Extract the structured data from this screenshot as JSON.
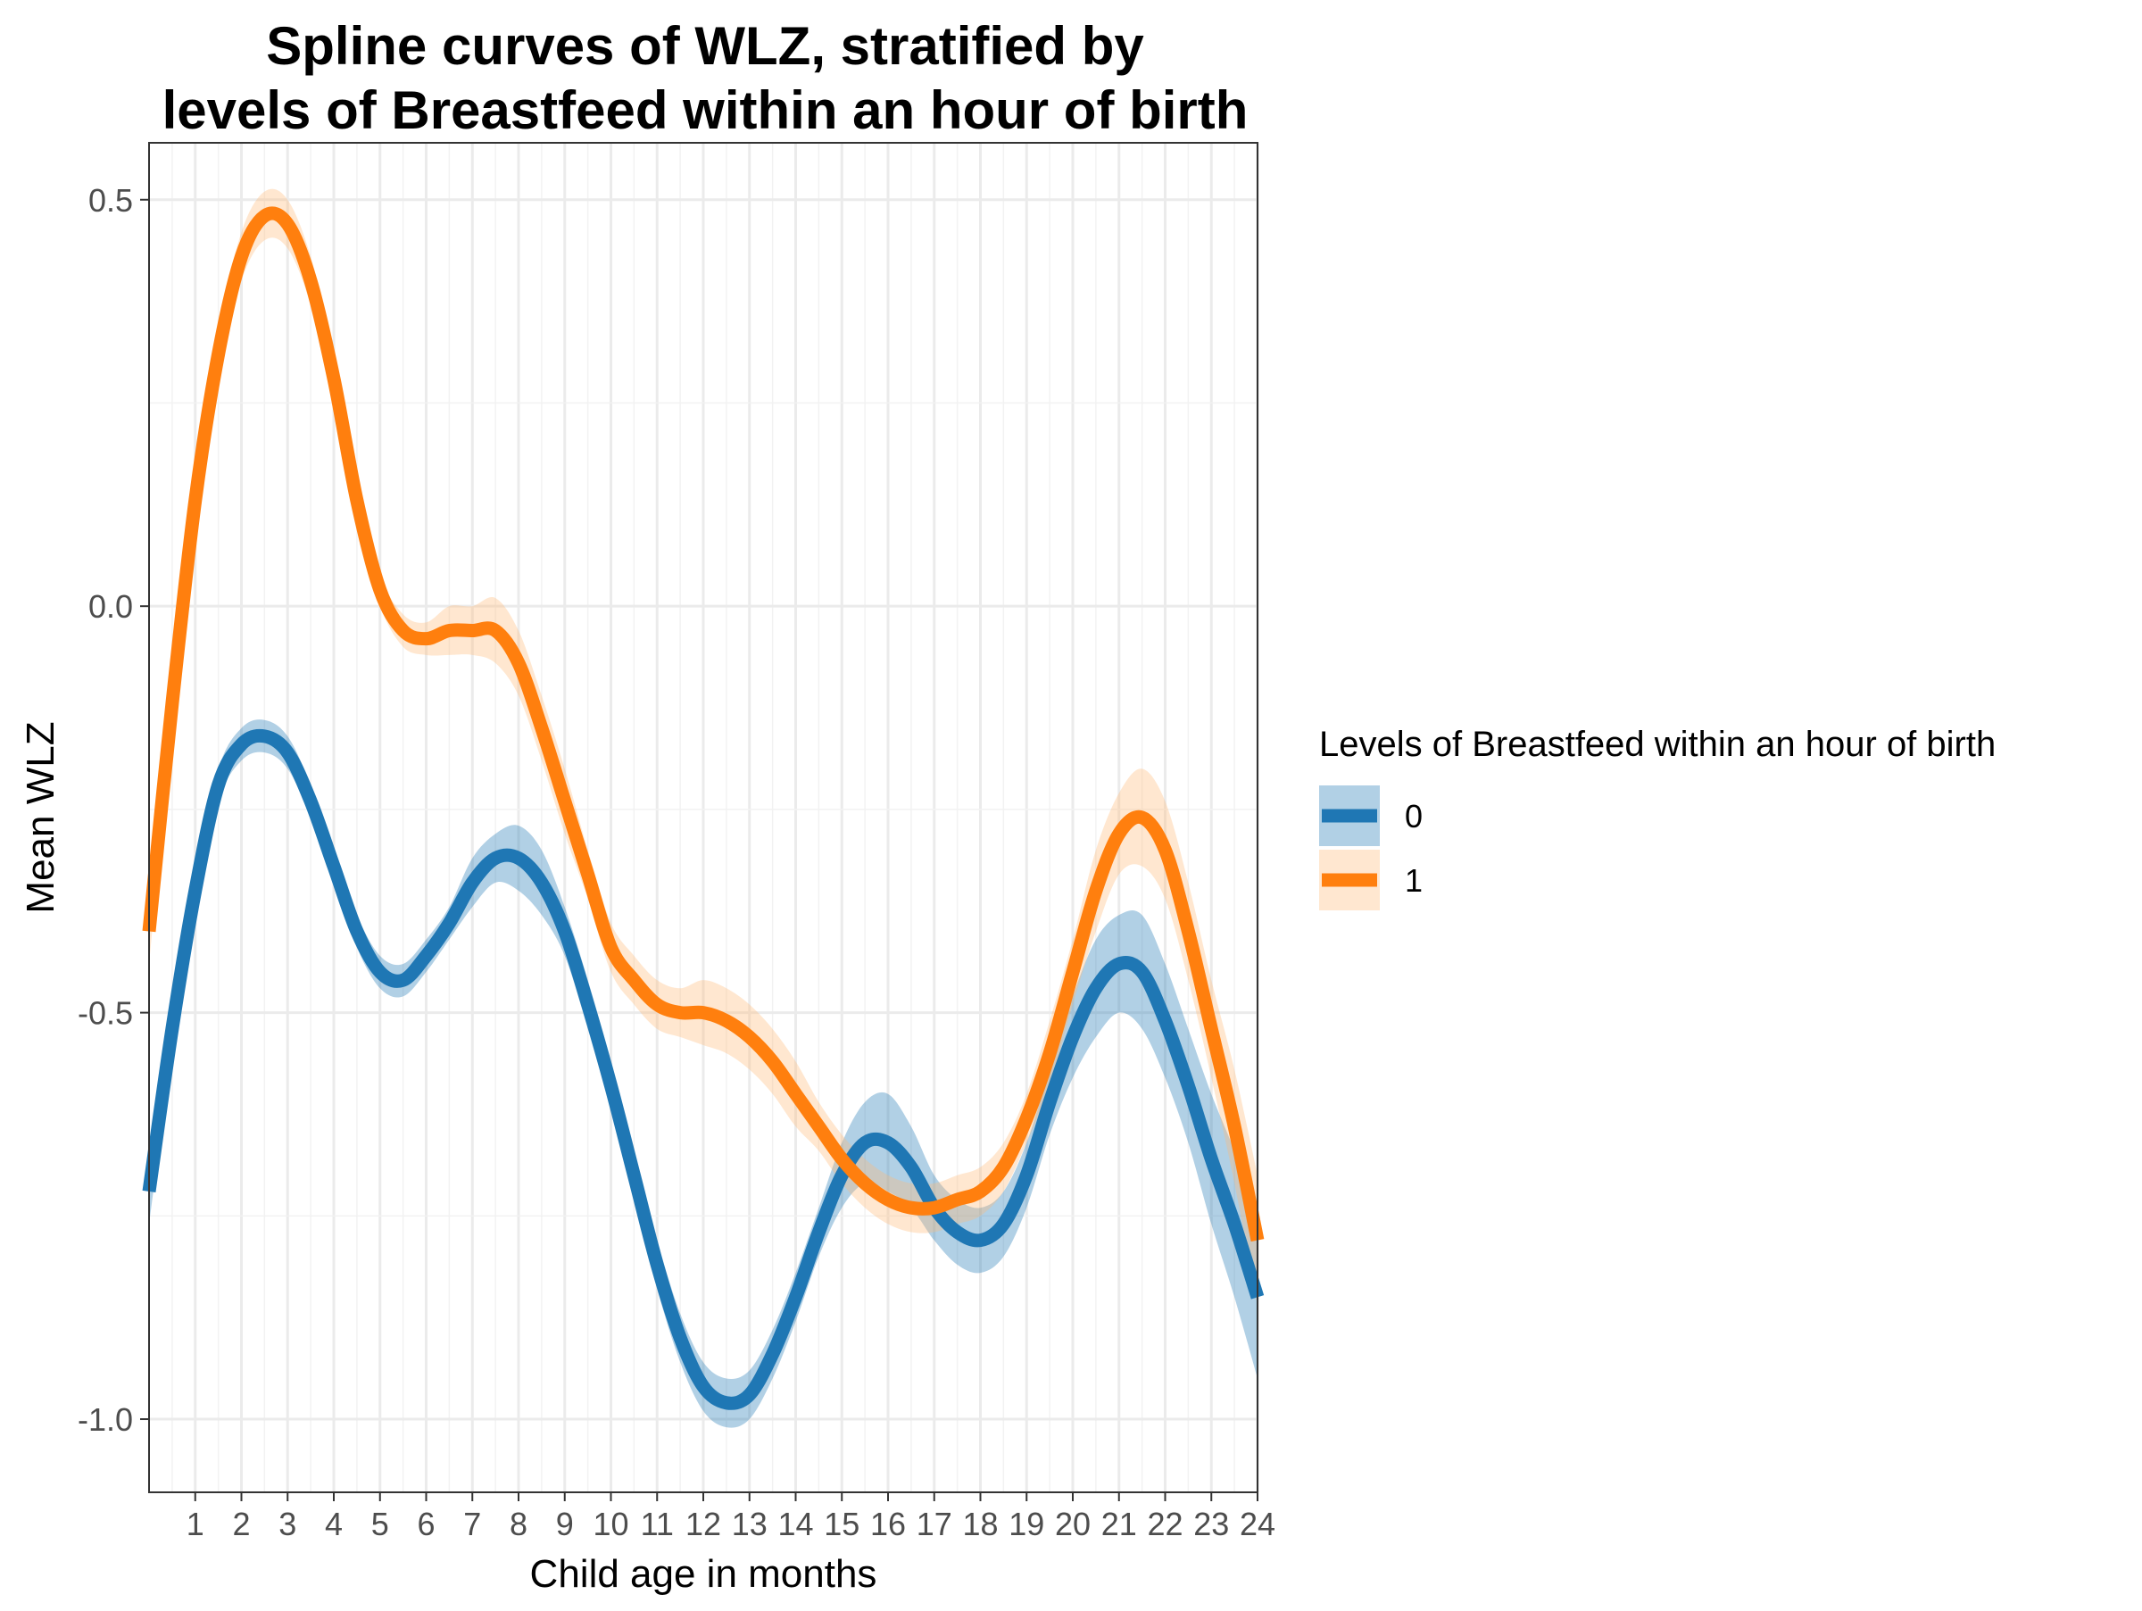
{
  "chart_data": {
    "type": "line",
    "title": [
      "Spline curves of WLZ, stratified by",
      "levels of Breastfeed within an hour of birth"
    ],
    "xlabel": "Child age in months",
    "ylabel": "Mean WLZ",
    "xlim": [
      0,
      24
    ],
    "ylim": [
      -1.09,
      0.57
    ],
    "x_ticks": [
      1,
      2,
      3,
      4,
      5,
      6,
      7,
      8,
      9,
      10,
      11,
      12,
      13,
      14,
      15,
      16,
      17,
      18,
      19,
      20,
      21,
      22,
      23,
      24
    ],
    "y_ticks": [
      -1.0,
      -0.5,
      0.0,
      0.5
    ],
    "y_tick_labels": [
      "-1.0",
      "-0.5",
      "0.0",
      "0.5"
    ],
    "grid": true,
    "legend": {
      "title": "Levels of Breastfeed within an hour of birth",
      "placement": "right",
      "entries": [
        "0",
        "1"
      ]
    },
    "series": [
      {
        "name": "0",
        "color": "#1f77b4",
        "band_color": "#1f77b4",
        "x": [
          0,
          0.5,
          1,
          1.5,
          2,
          2.5,
          3,
          3.5,
          4,
          4.5,
          5,
          5.5,
          6,
          6.5,
          7,
          7.5,
          8,
          8.5,
          9,
          9.5,
          10,
          10.5,
          11,
          11.5,
          12,
          12.5,
          13,
          13.5,
          14,
          14.5,
          15,
          15.5,
          16,
          16.5,
          17,
          17.5,
          18,
          18.5,
          19,
          19.5,
          20,
          20.5,
          21,
          21.5,
          22,
          22.5,
          23,
          23.5,
          24
        ],
        "y": [
          -0.72,
          -0.52,
          -0.35,
          -0.22,
          -0.17,
          -0.16,
          -0.18,
          -0.24,
          -0.32,
          -0.4,
          -0.45,
          -0.46,
          -0.43,
          -0.39,
          -0.34,
          -0.31,
          -0.31,
          -0.34,
          -0.4,
          -0.49,
          -0.59,
          -0.7,
          -0.81,
          -0.9,
          -0.96,
          -0.98,
          -0.97,
          -0.92,
          -0.85,
          -0.77,
          -0.7,
          -0.66,
          -0.66,
          -0.69,
          -0.74,
          -0.77,
          -0.78,
          -0.76,
          -0.7,
          -0.61,
          -0.53,
          -0.47,
          -0.44,
          -0.45,
          -0.51,
          -0.59,
          -0.68,
          -0.76,
          -0.85
        ],
        "ci_width": [
          0.04,
          0.03,
          0.02,
          0.02,
          0.02,
          0.02,
          0.02,
          0.02,
          0.02,
          0.02,
          0.02,
          0.02,
          0.02,
          0.02,
          0.03,
          0.03,
          0.04,
          0.04,
          0.03,
          0.03,
          0.03,
          0.03,
          0.03,
          0.03,
          0.03,
          0.03,
          0.03,
          0.03,
          0.03,
          0.03,
          0.04,
          0.05,
          0.06,
          0.05,
          0.04,
          0.04,
          0.04,
          0.04,
          0.04,
          0.04,
          0.05,
          0.06,
          0.06,
          0.07,
          0.07,
          0.07,
          0.08,
          0.09,
          0.1
        ]
      },
      {
        "name": "1",
        "color": "#ff7f0e",
        "band_color": "#ffbb78",
        "x": [
          0,
          0.5,
          1,
          1.5,
          2,
          2.5,
          3,
          3.5,
          4,
          4.5,
          5,
          5.5,
          6,
          6.5,
          7,
          7.5,
          8,
          8.5,
          9,
          9.5,
          10,
          10.5,
          11,
          11.5,
          12,
          12.5,
          13,
          13.5,
          14,
          14.5,
          15,
          15.5,
          16,
          16.5,
          17,
          17.5,
          18,
          18.5,
          19,
          19.5,
          20,
          20.5,
          21,
          21.5,
          22,
          22.5,
          23,
          23.5,
          24
        ],
        "y": [
          -0.4,
          -0.12,
          0.13,
          0.31,
          0.43,
          0.48,
          0.47,
          0.4,
          0.28,
          0.13,
          0.02,
          -0.03,
          -0.04,
          -0.03,
          -0.03,
          -0.03,
          -0.07,
          -0.15,
          -0.24,
          -0.33,
          -0.42,
          -0.46,
          -0.49,
          -0.5,
          -0.5,
          -0.51,
          -0.53,
          -0.56,
          -0.6,
          -0.64,
          -0.68,
          -0.71,
          -0.73,
          -0.74,
          -0.74,
          -0.73,
          -0.72,
          -0.69,
          -0.63,
          -0.55,
          -0.45,
          -0.35,
          -0.28,
          -0.26,
          -0.3,
          -0.4,
          -0.52,
          -0.64,
          -0.78
        ],
        "ci_width": [
          0.04,
          0.03,
          0.03,
          0.03,
          0.03,
          0.03,
          0.03,
          0.03,
          0.03,
          0.03,
          0.02,
          0.02,
          0.02,
          0.03,
          0.03,
          0.04,
          0.04,
          0.04,
          0.04,
          0.03,
          0.03,
          0.03,
          0.03,
          0.03,
          0.04,
          0.04,
          0.04,
          0.04,
          0.04,
          0.03,
          0.03,
          0.03,
          0.03,
          0.03,
          0.03,
          0.03,
          0.03,
          0.03,
          0.03,
          0.04,
          0.04,
          0.05,
          0.05,
          0.06,
          0.06,
          0.06,
          0.06,
          0.07,
          0.08
        ]
      }
    ]
  }
}
